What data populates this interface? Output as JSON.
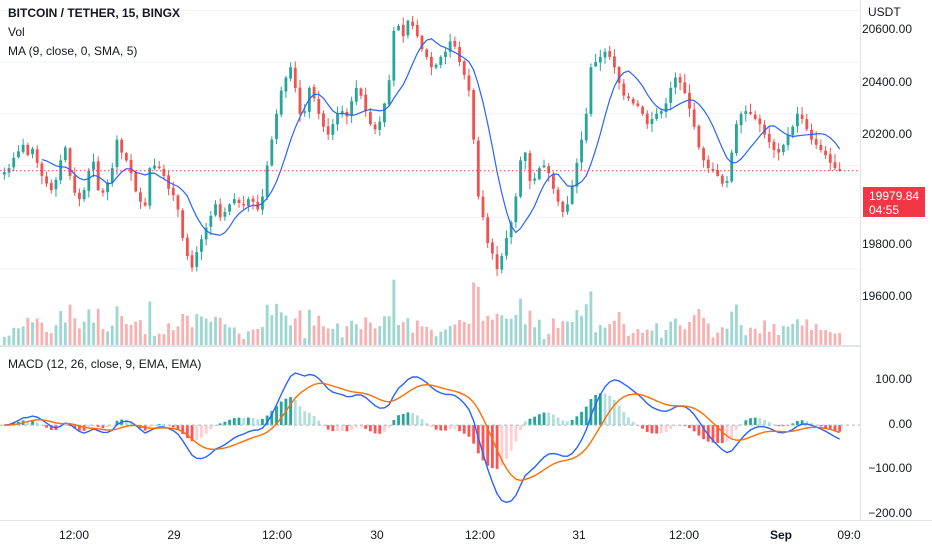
{
  "header": {
    "symbol": "BITCOIN / TETHER, 15, BINGX",
    "volume_label": "Vol",
    "ma_label": "MA (9, close, 0, SMA, 5)",
    "macd_label": "MACD (12, 26, close, 9, EMA, EMA)"
  },
  "price_axis": {
    "currency": "USDT",
    "ticks": [
      "20600.00",
      "20400.00",
      "20200.00",
      "19800.00",
      "19600.00"
    ],
    "last_price": "19979.84",
    "countdown": "04:55"
  },
  "macd_axis": {
    "ticks": [
      "100.00",
      "0.00",
      "−100.00",
      "−200.00"
    ]
  },
  "time_axis": {
    "ticks": [
      "12:00",
      "29",
      "12:00",
      "30",
      "12:00",
      "31",
      "12:00",
      "Sep",
      "09:0"
    ]
  },
  "colors": {
    "up": "#26a69a",
    "down": "#ef5350",
    "ma": "#2962ff",
    "macd_line": "#2962ff",
    "signal_line": "#ff6d00",
    "last_price": "#f23645"
  },
  "chart_data": {
    "type": "candlestick",
    "price_range": [
      19480,
      20640
    ],
    "last_price": 19979.84,
    "closes": [
      19975,
      19990,
      20030,
      20055,
      20080,
      20040,
      20065,
      20010,
      19960,
      19930,
      19905,
      19945,
      20020,
      20070,
      19960,
      19895,
      19870,
      19905,
      19980,
      20015,
      19905,
      19895,
      19935,
      19990,
      20100,
      20050,
      20020,
      19970,
      19900,
      19860,
      19845,
      19990,
      20000,
      19990,
      19960,
      19910,
      19885,
      19830,
      19720,
      19650,
      19605,
      19665,
      19715,
      19760,
      19805,
      19850,
      19800,
      19820,
      19850,
      19870,
      19855,
      19845,
      19870,
      19860,
      19830,
      19880,
      20000,
      20100,
      20200,
      20290,
      20340,
      20380,
      20300,
      20200,
      20210,
      20300,
      20260,
      20200,
      20150,
      20120,
      20160,
      20200,
      20210,
      20190,
      20250,
      20300,
      20270,
      20210,
      20160,
      20140,
      20170,
      20240,
      20330,
      20520,
      20540,
      20500,
      20560,
      20540,
      20500,
      20450,
      20420,
      20380,
      20390,
      20420,
      20440,
      20480,
      20460,
      20400,
      20350,
      20290,
      20100,
      19880,
      19800,
      19700,
      19660,
      19600,
      19650,
      19720,
      19780,
      19880,
      20020,
      20050,
      19940,
      19950,
      19990,
      20000,
      19970,
      19910,
      19860,
      19820,
      19850,
      19920,
      20010,
      20100,
      20200,
      20380,
      20400,
      20420,
      20440,
      20420,
      20380,
      20320,
      20270,
      20260,
      20240,
      20230,
      20200,
      20160,
      20180,
      20200,
      20210,
      20240,
      20300,
      20340,
      20320,
      20280,
      20220,
      20150,
      20070,
      20020,
      19990,
      19980,
      19960,
      19930,
      19940,
      20050,
      20160,
      20200,
      20210,
      20200,
      20180,
      20160,
      20120,
      20090,
      20060,
      20050,
      20080,
      20120,
      20150,
      20200,
      20180,
      20140,
      20100,
      20080,
      20060,
      20040,
      20010,
      19990,
      19979.84
    ],
    "ma_period": 9,
    "macd": {
      "params": [
        12,
        26,
        9
      ],
      "range": [
        -200,
        130
      ],
      "ticks": [
        100,
        0,
        -100,
        -200
      ]
    },
    "time_labels": [
      "12:00",
      "29",
      "12:00",
      "30",
      "12:00",
      "31",
      "12:00",
      "Sep",
      "09:0"
    ]
  }
}
